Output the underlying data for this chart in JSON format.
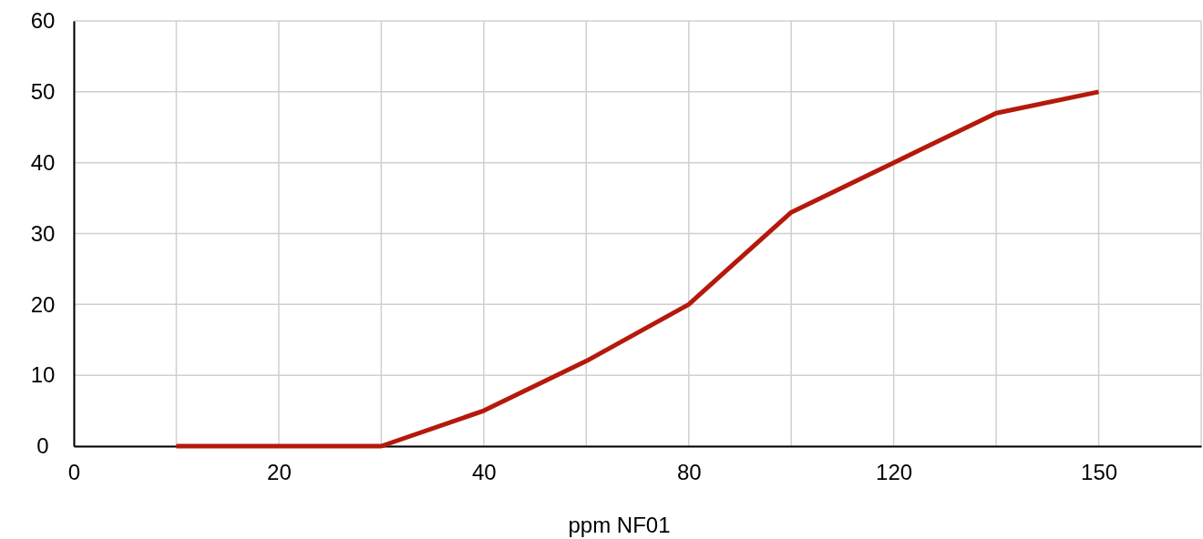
{
  "chart_data": {
    "type": "line",
    "xlabel": "ppm NF01",
    "categories": [
      "0",
      null,
      "20",
      null,
      "40",
      null,
      "80",
      null,
      "120",
      null,
      "150",
      null
    ],
    "series": [
      {
        "color": "#b5190c",
        "values": [
          null,
          0,
          0,
          0,
          5,
          12,
          20,
          33,
          40,
          47,
          50,
          null
        ]
      }
    ],
    "ylim": [
      0,
      60
    ],
    "yticks": [
      0,
      10,
      20,
      30,
      40,
      50,
      60
    ],
    "grid": true
  }
}
